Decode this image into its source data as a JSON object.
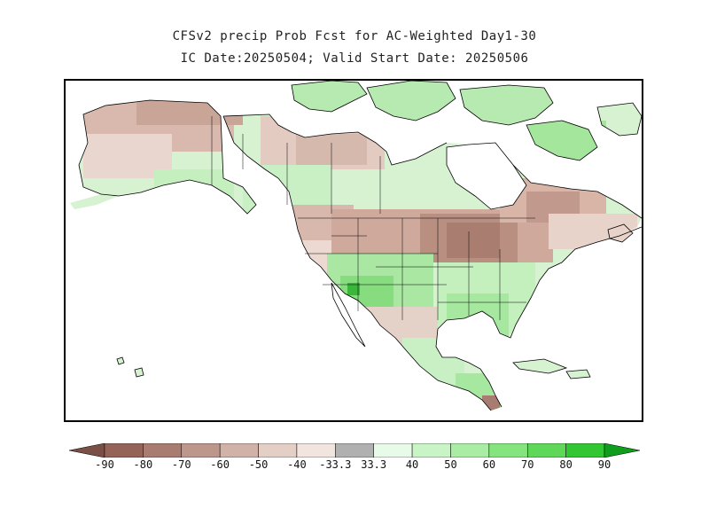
{
  "title": {
    "line1": "CFSv2 precip Prob Fcst for AC-Weighted Day1-30",
    "line2": "IC Date:20250504; Valid Start Date: 20250506"
  },
  "colorbar": {
    "labels": [
      "-90",
      "-80",
      "-70",
      "-60",
      "-50",
      "-40",
      "-33.3",
      "33.3",
      "40",
      "50",
      "60",
      "70",
      "80",
      "90"
    ],
    "colors": [
      "#7a4f45",
      "#946459",
      "#a97c71",
      "#bd978c",
      "#d0b2a8",
      "#e4cfc7",
      "#f2e4de",
      "#b0b0b0",
      "#e8fbe8",
      "#c9f4c6",
      "#a8eda3",
      "#86e47f",
      "#5fd85a",
      "#33c633",
      "#0f9e1c"
    ]
  },
  "map": {
    "ocean_color": "#ffffff",
    "coast_color": "#000000",
    "regions_note": "dry-brown over northern Canada, Alaska, Great Lakes, Pacific NW and E Canada; wet-green over Arctic islands, SW US, SE US, Mexico"
  }
}
